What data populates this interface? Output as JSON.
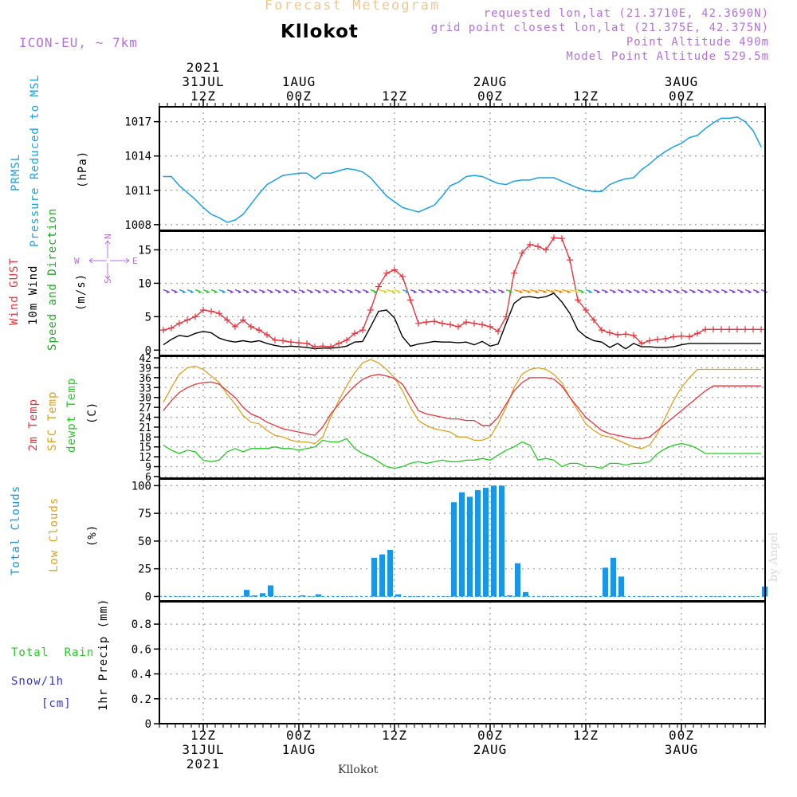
{
  "header": {
    "faint_title": "Forecast Meteogram",
    "station": "Kllokot",
    "model": "ICON-EU, ~ 7km",
    "info_lines": [
      "requested lon,lat (21.3710E, 42.3690N)",
      "grid point closest lon,lat (21.375E, 42.375N)",
      "Point Altitude 490m",
      "Model Point Altitude 529.5m"
    ],
    "watermark": "by Angel",
    "footer": "Kllokot"
  },
  "colors": {
    "pressure": "#19a0e6",
    "gust": "#e8343c",
    "wind": "#000000",
    "wind_dir": "#22aa22",
    "temp2m": "#e8343c",
    "sfc_temp": "#e0a020",
    "dewpt": "#22cc22",
    "total_clouds": "#1996e6",
    "low_clouds": "#e0a020",
    "rain": "#22cc22",
    "snow": "#3333dd",
    "compass": "#b46fe0"
  },
  "chart_data": [
    {
      "type": "line",
      "panel": "pressure",
      "ylabel_lines": [
        "PRMSL",
        "Pressure Reduced to MSL"
      ],
      "unit": "(hPa)",
      "x": [
        0,
        1,
        2,
        3,
        4,
        5,
        6,
        7,
        8,
        9,
        10,
        11,
        12,
        13,
        14,
        15,
        16,
        17,
        18,
        19,
        20,
        21,
        22,
        23,
        24,
        25,
        26,
        27,
        28,
        29,
        30,
        31,
        32,
        33,
        34,
        35,
        36,
        37,
        38,
        39,
        40,
        41,
        42,
        43,
        44,
        45,
        46,
        47,
        48,
        49,
        50,
        51,
        52,
        53,
        54,
        55,
        56,
        57,
        58,
        59,
        60,
        61,
        62,
        63,
        64,
        65,
        66,
        67,
        68,
        69,
        70,
        71,
        72,
        73,
        74,
        75
      ],
      "y": [
        1012.2,
        1012.2,
        1011.4,
        1010.8,
        1010.2,
        1009.5,
        1008.9,
        1008.6,
        1008.2,
        1008.4,
        1008.9,
        1009.8,
        1010.7,
        1011.5,
        1011.9,
        1012.3,
        1012.4,
        1012.5,
        1012.5,
        1012.0,
        1012.5,
        1012.5,
        1012.7,
        1012.9,
        1012.8,
        1012.6,
        1012.1,
        1011.3,
        1010.5,
        1010.0,
        1009.5,
        1009.3,
        1009.1,
        1009.4,
        1009.7,
        1010.5,
        1011.4,
        1011.7,
        1012.2,
        1012.3,
        1012.2,
        1011.9,
        1011.6,
        1011.5,
        1011.8,
        1011.9,
        1011.9,
        1012.1,
        1012.1,
        1012.1,
        1011.8,
        1011.5,
        1011.2,
        1011.0,
        1010.9,
        1010.9,
        1011.5,
        1011.8,
        1012.0,
        1012.1,
        1012.8,
        1013.3,
        1013.9,
        1014.4,
        1014.8,
        1015.1,
        1015.6,
        1015.8,
        1016.4,
        1016.9,
        1017.3,
        1017.3,
        1017.4,
        1017.0,
        1016.2,
        1014.8
      ],
      "yticks": [
        1008,
        1011,
        1014,
        1017
      ],
      "ylim": [
        1007.5,
        1018.3
      ]
    },
    {
      "type": "line",
      "panel": "wind",
      "ylabel_lines": [
        "Wind GUST",
        "10m Wind",
        "Speed and Direction"
      ],
      "unit": "(m/s)",
      "x": [
        0,
        1,
        2,
        3,
        4,
        5,
        6,
        7,
        8,
        9,
        10,
        11,
        12,
        13,
        14,
        15,
        16,
        17,
        18,
        19,
        20,
        21,
        22,
        23,
        24,
        25,
        26,
        27,
        28,
        29,
        30,
        31,
        32,
        33,
        34,
        35,
        36,
        37,
        38,
        39,
        40,
        41,
        42,
        43,
        44,
        45,
        46,
        47,
        48,
        49,
        50,
        51,
        52,
        53,
        54,
        55,
        56,
        57,
        58,
        59,
        60,
        61,
        62,
        63,
        64,
        65,
        66,
        67,
        68,
        69,
        70,
        71,
        72,
        73,
        74,
        75
      ],
      "series": [
        {
          "name": "Wind GUST",
          "values": [
            3.0,
            3.3,
            4.0,
            4.5,
            5.0,
            6.0,
            5.8,
            5.5,
            4.5,
            3.5,
            4.5,
            3.5,
            3.0,
            2.3,
            1.5,
            1.4,
            1.2,
            1.1,
            1.0,
            0.5,
            0.6,
            0.5,
            1.0,
            1.5,
            2.5,
            3.0,
            6.0,
            9.5,
            11.5,
            12.0,
            11.0,
            7.5,
            4.0,
            4.2,
            4.3,
            4.0,
            3.8,
            3.5,
            4.2,
            4.0,
            3.8,
            3.5,
            2.8,
            5.0,
            11.5,
            14.5,
            15.8,
            15.5,
            15.0,
            16.8,
            16.7,
            13.5,
            7.5,
            6.0,
            4.5,
            3.0,
            2.6,
            2.3,
            2.4,
            2.2,
            1.0,
            1.4,
            1.6,
            1.7,
            2.0,
            2.1,
            2.0,
            2.5,
            3.1,
            3.1,
            3.1,
            3.1,
            3.1,
            3.1,
            3.1,
            3.1
          ]
        },
        {
          "name": "10m Wind",
          "values": [
            0.8,
            1.6,
            2.2,
            2.0,
            2.5,
            2.8,
            2.6,
            1.8,
            1.4,
            1.2,
            1.4,
            1.2,
            1.4,
            1.0,
            0.7,
            0.5,
            0.6,
            0.5,
            0.4,
            0.2,
            0.3,
            0.3,
            0.4,
            0.6,
            1.2,
            1.3,
            3.5,
            5.8,
            6.0,
            4.8,
            2.0,
            0.6,
            0.9,
            1.1,
            1.3,
            1.2,
            1.2,
            1.1,
            1.2,
            0.8,
            1.3,
            0.6,
            0.9,
            4.0,
            7.0,
            7.9,
            8.0,
            7.8,
            8.0,
            8.5,
            7.2,
            5.5,
            3.0,
            2.0,
            1.4,
            1.2,
            0.4,
            1.0,
            0.2,
            1.0,
            0.5,
            0.5,
            0.4,
            0.4,
            0.5,
            0.8,
            1.0,
            1.0,
            1.0,
            1.0,
            1.0,
            1.0,
            1.0,
            1.0,
            1.0,
            1.0
          ]
        }
      ],
      "yticks": [
        0,
        5,
        10,
        15
      ],
      "ylim": [
        -0.8,
        17.8
      ],
      "compass": {
        "west": "W",
        "east": "E",
        "north": "N",
        "south": "S"
      }
    },
    {
      "type": "line",
      "panel": "temperature",
      "ylabel_lines": [
        "2m Temp",
        "SFC Temp",
        "dewpt Temp"
      ],
      "unit": "(C)",
      "x": [
        0,
        1,
        2,
        3,
        4,
        5,
        6,
        7,
        8,
        9,
        10,
        11,
        12,
        13,
        14,
        15,
        16,
        17,
        18,
        19,
        20,
        21,
        22,
        23,
        24,
        25,
        26,
        27,
        28,
        29,
        30,
        31,
        32,
        33,
        34,
        35,
        36,
        37,
        38,
        39,
        40,
        41,
        42,
        43,
        44,
        45,
        46,
        47,
        48,
        49,
        50,
        51,
        52,
        53,
        54,
        55,
        56,
        57,
        58,
        59,
        60,
        61,
        62,
        63,
        64,
        65,
        66,
        67,
        68,
        69,
        70,
        71,
        72,
        73,
        74,
        75
      ],
      "series": [
        {
          "name": "2m Temp",
          "values": [
            26.0,
            29.0,
            31.5,
            33.0,
            34.0,
            34.5,
            34.7,
            34.0,
            32.0,
            30.0,
            27.0,
            25.0,
            24.0,
            22.5,
            21.5,
            20.5,
            20.0,
            19.5,
            19.0,
            18.5,
            21.0,
            25.0,
            28.0,
            31.0,
            33.5,
            35.5,
            36.5,
            37.0,
            36.5,
            35.8,
            34.0,
            30.0,
            26.0,
            25.0,
            24.5,
            24.0,
            23.5,
            23.5,
            23.0,
            23.0,
            21.5,
            21.5,
            24.0,
            28.0,
            32.0,
            34.5,
            36.0,
            36.0,
            36.0,
            35.5,
            33.5,
            30.0,
            27.0,
            24.0,
            22.0,
            20.0,
            19.0,
            18.5,
            18.0,
            17.5,
            17.5,
            18.0,
            20.0,
            22.0,
            24.0,
            26.0,
            28.0,
            30.0,
            32.0,
            33.5,
            33.5,
            33.5,
            33.5,
            33.5,
            33.5,
            33.5
          ]
        },
        {
          "name": "SFC Temp",
          "values": [
            28.5,
            33.0,
            37.0,
            39.0,
            39.5,
            38.5,
            36.5,
            34.5,
            31.0,
            28.0,
            24.5,
            22.5,
            22.0,
            20.0,
            18.5,
            18.0,
            17.0,
            16.5,
            16.5,
            16.0,
            18.0,
            24.0,
            29.0,
            33.5,
            37.5,
            40.5,
            41.5,
            40.5,
            38.5,
            36.0,
            32.0,
            27.0,
            23.0,
            21.5,
            20.5,
            20.0,
            19.5,
            18.0,
            18.0,
            17.0,
            17.0,
            18.0,
            22.0,
            27.0,
            33.0,
            37.0,
            38.5,
            39.0,
            38.5,
            37.0,
            34.5,
            30.0,
            26.0,
            22.0,
            20.0,
            18.5,
            18.0,
            17.0,
            16.0,
            15.0,
            14.5,
            15.5,
            19.0,
            24.0,
            29.0,
            33.0,
            36.0,
            38.5,
            38.5,
            38.5,
            38.5,
            38.5,
            38.5,
            38.5,
            38.5,
            38.5
          ]
        },
        {
          "name": "dewpt Temp",
          "values": [
            15.5,
            14.0,
            13.0,
            14.0,
            13.5,
            11.0,
            10.5,
            11.0,
            13.5,
            14.5,
            13.5,
            14.5,
            14.5,
            14.5,
            15.0,
            14.5,
            14.5,
            14.0,
            14.5,
            15.0,
            17.0,
            16.5,
            16.5,
            17.5,
            14.5,
            13.0,
            12.0,
            10.5,
            9.0,
            8.5,
            9.0,
            10.0,
            10.5,
            10.0,
            10.5,
            11.0,
            10.5,
            10.5,
            11.0,
            11.0,
            11.5,
            11.0,
            12.5,
            14.0,
            15.0,
            16.5,
            15.5,
            11.0,
            11.5,
            11.0,
            9.0,
            10.0,
            10.0,
            9.0,
            9.0,
            8.5,
            10.0,
            10.0,
            9.5,
            10.0,
            10.0,
            10.5,
            13.0,
            14.5,
            15.5,
            16.0,
            15.5,
            14.5,
            13.0,
            13.0,
            13.0,
            13.0,
            13.0,
            13.0,
            13.0,
            13.0
          ]
        }
      ],
      "yticks": [
        6,
        9,
        12,
        15,
        18,
        21,
        24,
        27,
        30,
        33,
        36,
        39,
        42
      ],
      "ylim": [
        5.5,
        42.5
      ]
    },
    {
      "type": "bar",
      "panel": "clouds",
      "ylabel_lines": [
        "Total Clouds",
        "Low Clouds"
      ],
      "unit": "(%)",
      "x": [
        0,
        1,
        2,
        3,
        4,
        5,
        6,
        7,
        8,
        9,
        10,
        11,
        12,
        13,
        14,
        15,
        16,
        17,
        18,
        19,
        20,
        21,
        22,
        23,
        24,
        25,
        26,
        27,
        28,
        29,
        30,
        31,
        32,
        33,
        34,
        35,
        36,
        37,
        38,
        39,
        40,
        41,
        42,
        43,
        44,
        45,
        46,
        47,
        48,
        49,
        50,
        51,
        52,
        53,
        54,
        55,
        56,
        57,
        58,
        59,
        60,
        61,
        62,
        63,
        64,
        65,
        66,
        67,
        68,
        69,
        70,
        71,
        72,
        73,
        74,
        75
      ],
      "values": [
        0,
        0,
        0,
        0,
        0,
        0,
        0,
        0,
        0,
        0,
        6,
        1,
        3,
        10,
        0,
        0,
        0,
        1,
        0,
        2,
        0,
        0,
        0,
        0,
        0,
        0,
        35,
        38,
        42,
        2,
        0,
        0,
        0,
        0,
        0,
        0,
        85,
        94,
        90,
        96,
        98,
        100,
        100,
        1,
        30,
        4,
        0,
        0,
        0,
        0,
        0,
        0,
        0,
        0,
        0,
        26,
        35,
        18,
        0,
        0,
        0,
        0,
        0,
        0,
        0,
        0,
        0,
        0,
        0,
        0,
        0,
        0,
        0,
        0,
        0,
        9
      ],
      "yticks": [
        0,
        25,
        50,
        75,
        100
      ],
      "ylim": [
        -4,
        106
      ]
    },
    {
      "type": "bar",
      "panel": "precipitation",
      "ylabel_lines": [
        "Total Rain",
        "Snow/1h",
        "[cm]"
      ],
      "unit": "1hr Precip (mm)",
      "x": [
        0,
        1,
        2,
        3,
        4,
        5,
        6,
        7,
        8,
        9,
        10,
        11,
        12,
        13,
        14,
        15,
        16,
        17,
        18,
        19,
        20,
        21,
        22,
        23,
        24,
        25,
        26,
        27,
        28,
        29,
        30,
        31,
        32,
        33,
        34,
        35,
        36,
        37,
        38,
        39,
        40,
        41,
        42,
        43,
        44,
        45,
        46,
        47,
        48,
        49,
        50,
        51,
        52,
        53,
        54,
        55,
        56,
        57,
        58,
        59,
        60,
        61,
        62,
        63,
        64,
        65,
        66,
        67,
        68,
        69,
        70,
        71,
        72,
        73,
        74,
        75
      ],
      "values": [
        0,
        0,
        0,
        0,
        0,
        0,
        0,
        0,
        0,
        0,
        0,
        0,
        0,
        0,
        0,
        0,
        0,
        0,
        0,
        0,
        0,
        0,
        0,
        0,
        0,
        0,
        0,
        0,
        0,
        0,
        0,
        0,
        0,
        0,
        0,
        0,
        0,
        0,
        0,
        0,
        0,
        0,
        0,
        0,
        0,
        0,
        0,
        0,
        0,
        0,
        0,
        0,
        0,
        0,
        0,
        0,
        0,
        0,
        0,
        0,
        0,
        0,
        0,
        0,
        0,
        0,
        0,
        0,
        0,
        0,
        0,
        0,
        0,
        0,
        0,
        0
      ],
      "yticks": [
        0,
        0.2,
        0.4,
        0.6,
        0.8
      ],
      "ylim": [
        0,
        0.98
      ]
    }
  ],
  "time_axis": {
    "top_labels": [
      {
        "i": 5,
        "lines": [
          "2021",
          "31JUL",
          "12Z"
        ]
      },
      {
        "i": 17,
        "lines": [
          "1AUG",
          "00Z"
        ]
      },
      {
        "i": 29,
        "lines": [
          "12Z"
        ]
      },
      {
        "i": 41,
        "lines": [
          "2AUG",
          "00Z"
        ]
      },
      {
        "i": 53,
        "lines": [
          "12Z"
        ]
      },
      {
        "i": 65,
        "lines": [
          "3AUG",
          "00Z"
        ]
      }
    ],
    "bottom_labels": [
      {
        "i": 5,
        "lines": [
          "12Z",
          "31JUL",
          "2021"
        ]
      },
      {
        "i": 17,
        "lines": [
          "00Z",
          "1AUG"
        ]
      },
      {
        "i": 29,
        "lines": [
          "12Z"
        ]
      },
      {
        "i": 41,
        "lines": [
          "00Z",
          "2AUG"
        ]
      },
      {
        "i": 53,
        "lines": [
          "12Z"
        ]
      },
      {
        "i": 65,
        "lines": [
          "00Z",
          "3AUG"
        ]
      }
    ]
  }
}
